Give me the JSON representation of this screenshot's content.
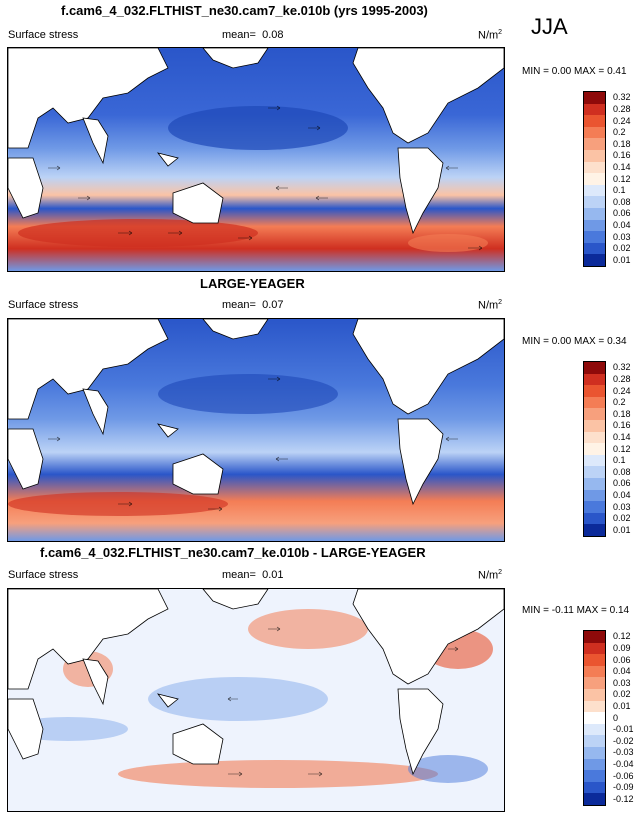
{
  "season": "JJA",
  "units": "N/m",
  "units_sup": "2",
  "panels": [
    {
      "title": "f.cam6_4_032.FLTHIST_ne30.cam7_ke.010b (yrs 1995-2003)",
      "variable": "Surface stress",
      "mean_label": "mean=",
      "mean": "0.08",
      "min_label": "MIN =",
      "min": "0.00",
      "max_label": "MAX =",
      "max": "0.41",
      "levels": [
        "0.32",
        "0.28",
        "0.24",
        "0.2",
        "0.18",
        "0.16",
        "0.14",
        "0.12",
        "0.1",
        "0.08",
        "0.06",
        "0.04",
        "0.03",
        "0.02",
        "0.01"
      ],
      "colors": [
        "#8e0a0a",
        "#cf2f20",
        "#ea5530",
        "#f47d55",
        "#f7a07d",
        "#fbc3a5",
        "#fde0cc",
        "#fff3e6",
        "#dde9fb",
        "#bcd3f6",
        "#96b8ef",
        "#6f99e6",
        "#4a79dc",
        "#2a56c9",
        "#0b2a9a"
      ]
    },
    {
      "title": "LARGE-YEAGER",
      "variable": "Surface stress",
      "mean_label": "mean=",
      "mean": "0.07",
      "min_label": "MIN =",
      "min": "0.00",
      "max_label": "MAX =",
      "max": "0.34",
      "levels": [
        "0.32",
        "0.28",
        "0.24",
        "0.2",
        "0.18",
        "0.16",
        "0.14",
        "0.12",
        "0.1",
        "0.08",
        "0.06",
        "0.04",
        "0.03",
        "0.02",
        "0.01"
      ],
      "colors": [
        "#8e0a0a",
        "#cf2f20",
        "#ea5530",
        "#f47d55",
        "#f7a07d",
        "#fbc3a5",
        "#fde0cc",
        "#fff3e6",
        "#dde9fb",
        "#bcd3f6",
        "#96b8ef",
        "#6f99e6",
        "#4a79dc",
        "#2a56c9",
        "#0b2a9a"
      ]
    },
    {
      "title": "f.cam6_4_032.FLTHIST_ne30.cam7_ke.010b - LARGE-YEAGER",
      "variable": "Surface stress",
      "mean_label": "mean=",
      "mean": "0.01",
      "min_label": "MIN =",
      "min": "-0.11",
      "max_label": "MAX =",
      "max": "0.14",
      "levels": [
        "0.12",
        "0.09",
        "0.06",
        "0.04",
        "0.03",
        "0.02",
        "0.01",
        "0",
        "-0.01",
        "-0.02",
        "-0.03",
        "-0.04",
        "-0.06",
        "-0.09",
        "-0.12"
      ],
      "colors": [
        "#8e0a0a",
        "#cf2f20",
        "#ea5530",
        "#f47d55",
        "#f7a07d",
        "#fbc3a5",
        "#fde0cc",
        "#ffffff",
        "#dde9fb",
        "#bcd3f6",
        "#96b8ef",
        "#6f99e6",
        "#4a79dc",
        "#2a56c9",
        "#0b2a9a"
      ]
    }
  ]
}
